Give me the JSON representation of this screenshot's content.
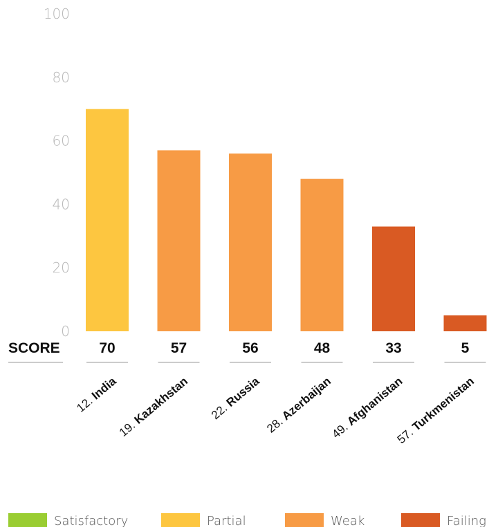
{
  "chart_data": {
    "type": "bar",
    "ylim": [
      0,
      100
    ],
    "yticks": [
      0,
      20,
      40,
      60,
      80,
      100
    ],
    "score_label": "SCORE",
    "categories": [
      {
        "rank": "12.",
        "name": "India",
        "value": 70,
        "status": "Partial"
      },
      {
        "rank": "19.",
        "name": "Kazakhstan",
        "value": 57,
        "status": "Weak"
      },
      {
        "rank": "22.",
        "name": "Russia",
        "value": 56,
        "status": "Weak"
      },
      {
        "rank": "28.",
        "name": "Azerbaijan",
        "value": 48,
        "status": "Weak"
      },
      {
        "rank": "49.",
        "name": "Afghanistan",
        "value": 33,
        "status": "Failing"
      },
      {
        "rank": "57.",
        "name": "Turkmenistan",
        "value": 5,
        "status": "Failing"
      }
    ],
    "legend": [
      {
        "label": "Satisfactory",
        "color": "#9acd32"
      },
      {
        "label": "Partial",
        "color": "#fdc640"
      },
      {
        "label": "Weak",
        "color": "#f79b45"
      },
      {
        "label": "Failing",
        "color": "#d95a23"
      }
    ],
    "grid": false,
    "legend_position": "bottom"
  }
}
